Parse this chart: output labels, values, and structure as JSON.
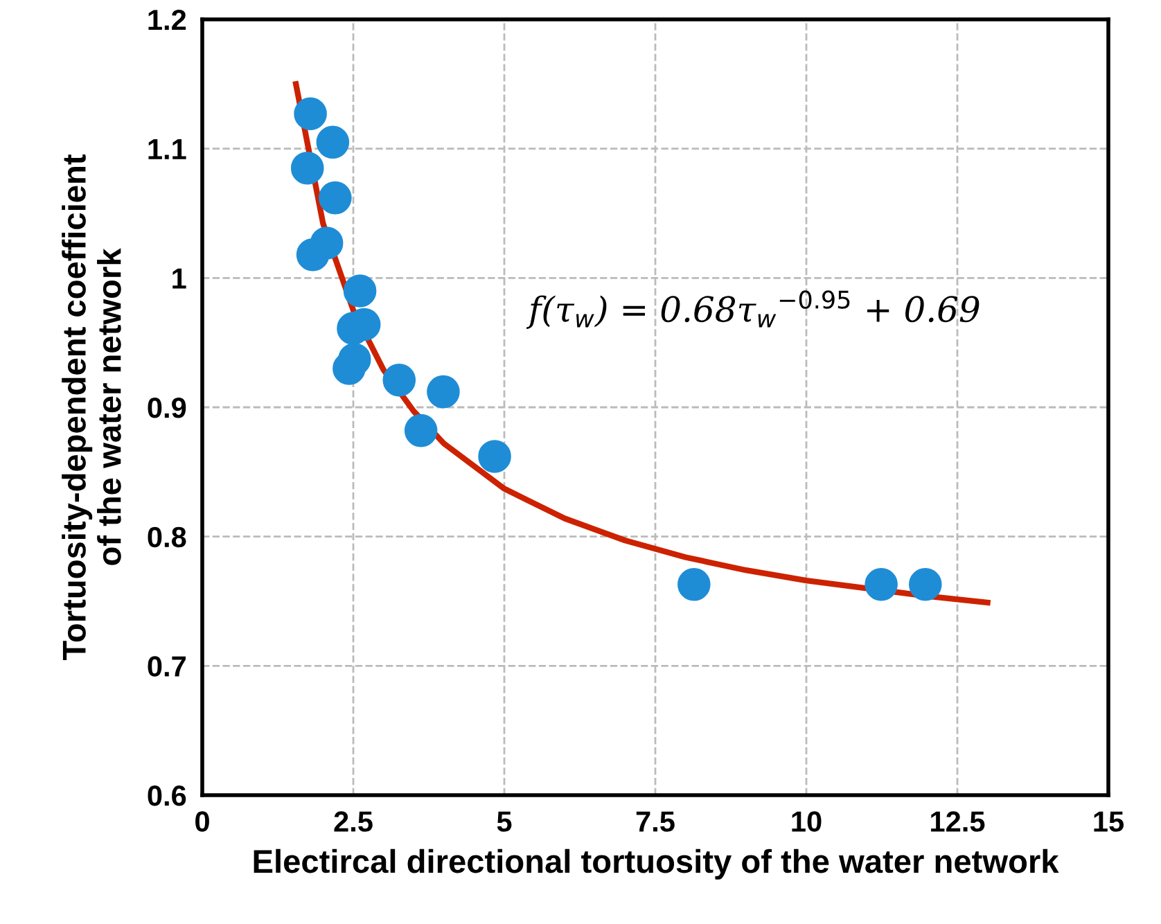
{
  "chart_data": {
    "type": "scatter",
    "xlabel": "Electircal directional tortuosity of the water network",
    "ylabel": "Tortuosity-dependent coefficient\nof the water network",
    "xlim": [
      0,
      15
    ],
    "xticks": [
      0,
      2.5,
      5,
      7.5,
      10,
      12.5,
      15
    ],
    "ylim": [
      0.6,
      1.2
    ],
    "yticks": [
      0.6,
      0.7,
      0.8,
      0.9,
      1,
      1.1,
      1.2
    ],
    "grid": true,
    "annotations": [
      "f(τ$_{w}$) = 0.68τ$_{w}$$^{−0.95}$ + 0.69"
    ],
    "series": [
      {
        "marker": "circle",
        "color": "#1f8dd6",
        "x": [
          1.79,
          2.16,
          1.74,
          2.2,
          2.06,
          1.83,
          2.61,
          2.68,
          2.5,
          2.52,
          2.43,
          3.26,
          3.99,
          3.62,
          4.84,
          8.14,
          11.24,
          11.97
        ],
        "values": [
          1.127,
          1.105,
          1.085,
          1.062,
          1.027,
          1.018,
          0.99,
          0.964,
          0.961,
          0.937,
          0.93,
          0.921,
          0.912,
          0.882,
          0.862,
          0.763,
          0.763,
          0.763
        ]
      },
      {
        "type": "line",
        "color": "#cc2200",
        "x": [
          1.55,
          2,
          2.5,
          3,
          3.5,
          4,
          5,
          6,
          7,
          8,
          9,
          10,
          11,
          12,
          13
        ],
        "values": [
          1.15,
          1.042,
          0.975,
          0.929,
          0.897,
          0.872,
          0.837,
          0.814,
          0.797,
          0.784,
          0.774,
          0.766,
          0.76,
          0.754,
          0.749
        ]
      }
    ]
  }
}
